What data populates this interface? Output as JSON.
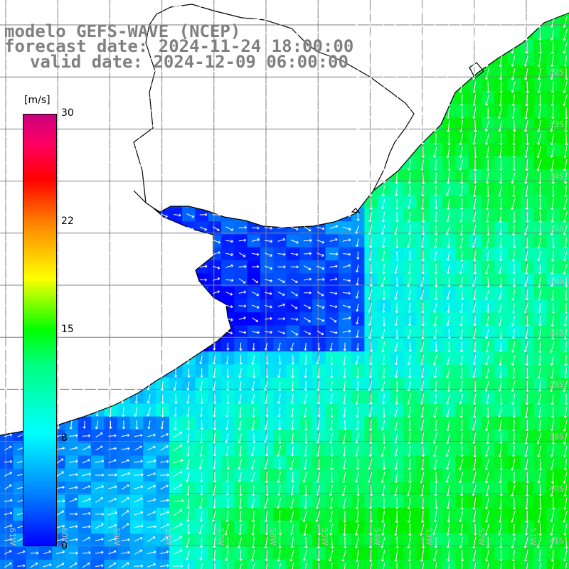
{
  "header": {
    "line1": "modelo GEFS-WAVE (NCEP)",
    "line2": "forecast date: 2024-11-24 18:00:00",
    "line3": "valid date: 2024-12-09 06:00:00"
  },
  "colorbar": {
    "unit": "[m/s]",
    "ticks": [
      "30",
      "22",
      "15",
      "8",
      "0"
    ],
    "colors": [
      "#0000ff",
      "#0080ff",
      "#00ffff",
      "#00ff80",
      "#00ff00",
      "#ffff00",
      "#ff8000",
      "#ff0000",
      "#cc0080"
    ]
  },
  "map": {
    "lat_labels": [
      "32S",
      "33S",
      "34S",
      "35S",
      "36S",
      "37S",
      "38S",
      "39S",
      "40S",
      "41S"
    ],
    "lon_labels": [
      "61W",
      "60W",
      "59W",
      "58W",
      "57W",
      "56W",
      "55W",
      "54W",
      "53W",
      "52W",
      "51W"
    ],
    "wind_direction": "southward",
    "colors": {
      "land": "#ffffff",
      "grid": "#808080",
      "coast": "#000000",
      "arrow": "#ffffff"
    }
  }
}
